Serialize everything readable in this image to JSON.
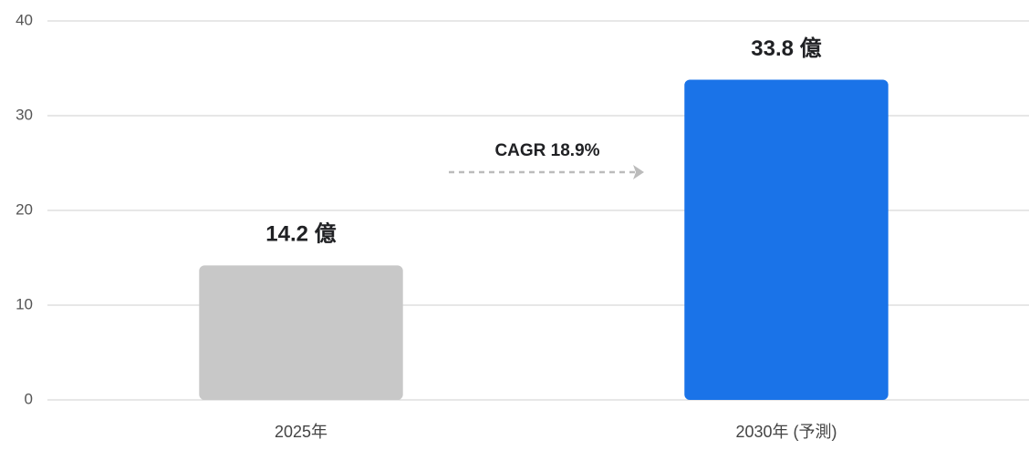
{
  "chart_data": {
    "type": "bar",
    "categories": [
      "2025年",
      "2030年 (予測)"
    ],
    "values": [
      14.2,
      33.8
    ],
    "value_labels": [
      "14.2 億",
      "33.8 億"
    ],
    "colors": [
      "#c8c8c8",
      "#1a73e8"
    ],
    "ylim": [
      0,
      40
    ],
    "yticks": [
      0,
      10,
      20,
      30,
      40
    ],
    "grid": true,
    "annotation": "CAGR 18.9%"
  }
}
